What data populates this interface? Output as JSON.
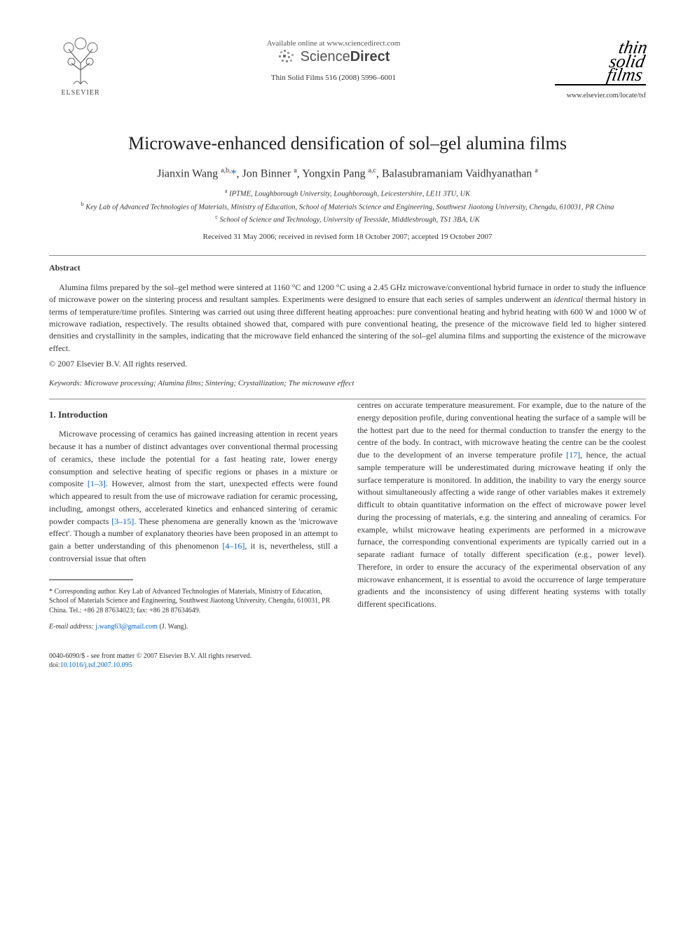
{
  "header": {
    "publisher_name": "ELSEVIER",
    "available_text": "Available online at www.sciencedirect.com",
    "sd_light": "Science",
    "sd_bold": "Direct",
    "journal_ref": "Thin Solid Films 516 (2008) 5996–6001",
    "journal_logo_line1": "thin",
    "journal_logo_line2": "solid",
    "journal_logo_line3": "films",
    "journal_url": "www.elsevier.com/locate/tsf"
  },
  "title": "Microwave-enhanced densification of sol–gel alumina films",
  "authors_html": "Jianxin Wang <sup>a,b,</sup><span class='author-link'>*</span>, Jon Binner <sup>a</sup>, Yongxin Pang <sup>a,c</sup>, Balasubramaniam Vaidhyanathan <sup>a</sup>",
  "affiliations": {
    "a": "IPTME, Loughborough University, Loughborough, Leicestershire, LE11 3TU, UK",
    "b": "Key Lab of Advanced Technologies of Materials, Ministry of Education, School of Materials Science and Engineering, Southwest Jiaotong University, Chengdu, 610031, PR China",
    "c": "School of Science and Technology, University of Teesside, Middlesbrough, TS1 3BA, UK"
  },
  "dates": "Received 31 May 2006; received in revised form 18 October 2007; accepted 19 October 2007",
  "abstract_label": "Abstract",
  "abstract_text_before_italic": "Alumina films prepared by the sol–gel method were sintered at 1160 °C and 1200 °C using a 2.45 GHz microwave/conventional hybrid furnace in order to study the influence of microwave power on the sintering process and resultant samples. Experiments were designed to ensure that each series of samples underwent an ",
  "abstract_italic": "identical",
  "abstract_text_after_italic": " thermal history in terms of temperature/time profiles. Sintering was carried out using three different heating approaches: pure conventional heating and hybrid heating with 600 W and 1000 W of microwave radiation, respectively. The results obtained showed that, compared with pure conventional heating, the presence of the microwave field led to higher sintered densities and crystallinity in the samples, indicating that the microwave field enhanced the sintering of the sol–gel alumina films and supporting the existence of the microwave effect.",
  "copyright": "© 2007 Elsevier B.V. All rights reserved.",
  "keywords_label": "Keywords:",
  "keywords": "Microwave processing; Alumina films; Sintering; Crystallization; The microwave effect",
  "intro_heading": "1. Introduction",
  "intro_p1_a": "Microwave processing of ceramics has gained increasing attention in recent years because it has a number of distinct advantages over conventional thermal processing of ceramics, these include the potential for a fast heating rate, lower energy consumption and selective heating of specific regions or phases in a mixture or composite ",
  "intro_p1_ref1": "[1–3]",
  "intro_p1_b": ". However, almost from the start, unexpected effects were found which appeared to result from the use of microwave radiation for ceramic processing, including, amongst others, accelerated kinetics and enhanced sintering of ceramic powder compacts ",
  "intro_p1_ref2": "[3–15]",
  "intro_p1_c": ". These phenomena are generally known as the 'microwave effect'. Though a number of explanatory theories have been proposed in an attempt to gain a better understanding of this phenomenon ",
  "intro_p1_ref3": "[4–16]",
  "intro_p1_d": ", it is, nevertheless, still a controversial issue that often",
  "intro_p2_a": "centres on accurate temperature measurement. For example, due to the nature of the energy deposition profile, during conventional heating the surface of a sample will be the hottest part due to the need for thermal conduction to transfer the energy to the centre of the body. In contract, with microwave heating the centre can be the coolest due to the development of an inverse temperature profile ",
  "intro_p2_ref1": "[17]",
  "intro_p2_b": ", hence, the actual sample temperature will be underestimated during microwave heating if only the surface temperature is monitored. In addition, the inability to vary the energy source without simultaneously affecting a wide range of other variables makes it extremely difficult to obtain quantitative information on the effect of microwave power level during the processing of materials, e.g. the sintering and annealing of ceramics. For example, whilst microwave heating experiments are performed in a microwave furnace, the corresponding conventional experiments are typically carried out in a separate radiant furnace of totally different specification (e.g., power level). Therefore, in order to ensure the accuracy of the experimental observation of any microwave enhancement, it is essential to avoid the occurrence of large temperature gradients and the inconsistency of using different heating systems with totally different specifications.",
  "footnote_corresponding": "* Corresponding author. Key Lab of Advanced Technologies of Materials, Ministry of Education, School of Materials Science and Engineering, Southwest Jiaotong University, Chengdu, 610031, PR China. Tel.: +86 28 87634023; fax: +86 28 87634649.",
  "footnote_email_label": "E-mail address:",
  "footnote_email": "j.wang63@gmail.com",
  "footnote_email_tail": " (J. Wang).",
  "bottom": {
    "issn": "0040-6090/$ - see front matter © 2007 Elsevier B.V. All rights reserved.",
    "doi_label": "doi:",
    "doi": "10.1016/j.tsf.2007.10.095"
  },
  "colors": {
    "link": "#0066cc",
    "text": "#333333",
    "rule": "#888888"
  }
}
